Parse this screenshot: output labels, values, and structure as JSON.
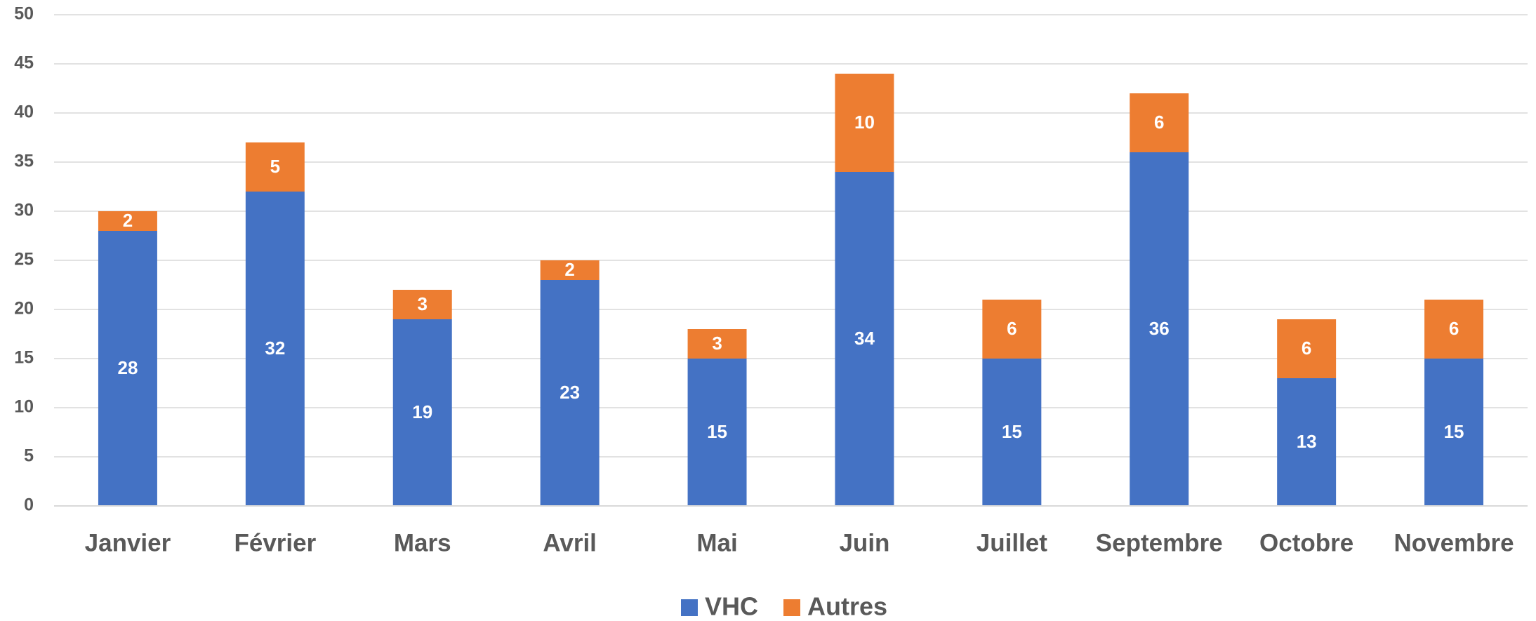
{
  "chart_data": {
    "type": "bar",
    "stacked": true,
    "categories": [
      "Janvier",
      "Février",
      "Mars",
      "Avril",
      "Mai",
      "Juin",
      "Juillet",
      "Septembre",
      "Octobre",
      "Novembre"
    ],
    "series": [
      {
        "name": "VHC",
        "color": "#4472c4",
        "values": [
          28,
          32,
          19,
          23,
          15,
          34,
          15,
          36,
          13,
          15
        ]
      },
      {
        "name": "Autres",
        "color": "#ed7d31",
        "values": [
          2,
          5,
          3,
          2,
          3,
          10,
          6,
          6,
          6,
          6
        ]
      }
    ],
    "ylim": [
      0,
      50
    ],
    "yticks": [
      0,
      5,
      10,
      15,
      20,
      25,
      30,
      35,
      40,
      45,
      50
    ],
    "grid": true,
    "legend": "bottom"
  }
}
